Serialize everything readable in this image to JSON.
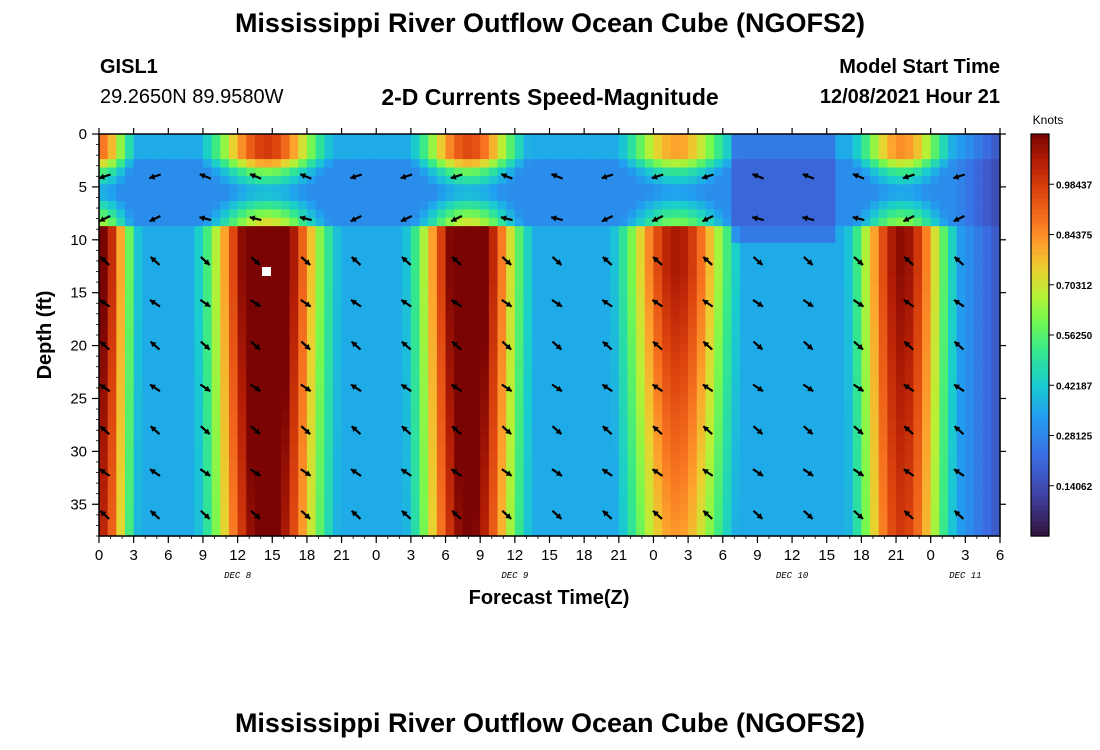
{
  "header": {
    "title": "Mississippi River Outflow Ocean Cube (NGOFS2)",
    "station_id": "GISL1",
    "coords": "29.2650N  89.9580W",
    "subtitle": "2-D Currents Speed-Magnitude",
    "model_start_label": "Model Start Time",
    "model_start_value": "12/08/2021 Hour 21"
  },
  "footer": {
    "title": "Mississippi River Outflow Ocean Cube (NGOFS2)"
  },
  "chart_data": {
    "type": "heatmap",
    "title": "2-D Currents Speed-Magnitude",
    "xlabel": "Forecast Time(Z)",
    "ylabel": "Depth (ft)",
    "xlim": [
      0,
      78
    ],
    "ylim": [
      38,
      0
    ],
    "x_tick_values": [
      0,
      3,
      6,
      9,
      12,
      15,
      18,
      21,
      24,
      27,
      30,
      33,
      36,
      39,
      42,
      45,
      48,
      51,
      54,
      57,
      60,
      63,
      66,
      69,
      72,
      75,
      78
    ],
    "x_tick_labels": [
      "0",
      "3",
      "6",
      "9",
      "12",
      "15",
      "18",
      "21",
      "0",
      "3",
      "6",
      "9",
      "12",
      "15",
      "18",
      "21",
      "0",
      "3",
      "6",
      "9",
      "12",
      "15",
      "18",
      "21",
      "0",
      "3",
      "6"
    ],
    "y_tick_values": [
      0,
      5,
      10,
      15,
      20,
      25,
      30,
      35
    ],
    "y_tick_labels": [
      "0",
      "5",
      "10",
      "15",
      "20",
      "25",
      "30",
      "35"
    ],
    "date_labels": [
      {
        "x": 12,
        "label": "DEC 8"
      },
      {
        "x": 36,
        "label": "DEC 9"
      },
      {
        "x": 60,
        "label": "DEC 10"
      },
      {
        "x": 75,
        "label": "DEC 11"
      }
    ],
    "colorbar": {
      "label": "Knots",
      "range": [
        0,
        1.125
      ],
      "tick_values": [
        0.140625,
        0.28125,
        0.421875,
        0.5625,
        0.703125,
        0.84375,
        0.984375
      ],
      "tick_labels": [
        "0.14062",
        "0.28125",
        "0.42187",
        "0.56250",
        "0.70312",
        "0.84375",
        "0.98437"
      ]
    },
    "speed_peaks": [
      {
        "time": 0,
        "speed": 0.98,
        "width": 2.8
      },
      {
        "time": 14.5,
        "speed": 1.12,
        "width": 4.8
      },
      {
        "time": 32,
        "speed": 1.08,
        "width": 4.3
      },
      {
        "time": 50,
        "speed": 0.88,
        "width": 4.6
      },
      {
        "time": 69.5,
        "speed": 0.92,
        "width": 3.9
      }
    ],
    "marker": {
      "time": 14.5,
      "depth": 13
    }
  }
}
